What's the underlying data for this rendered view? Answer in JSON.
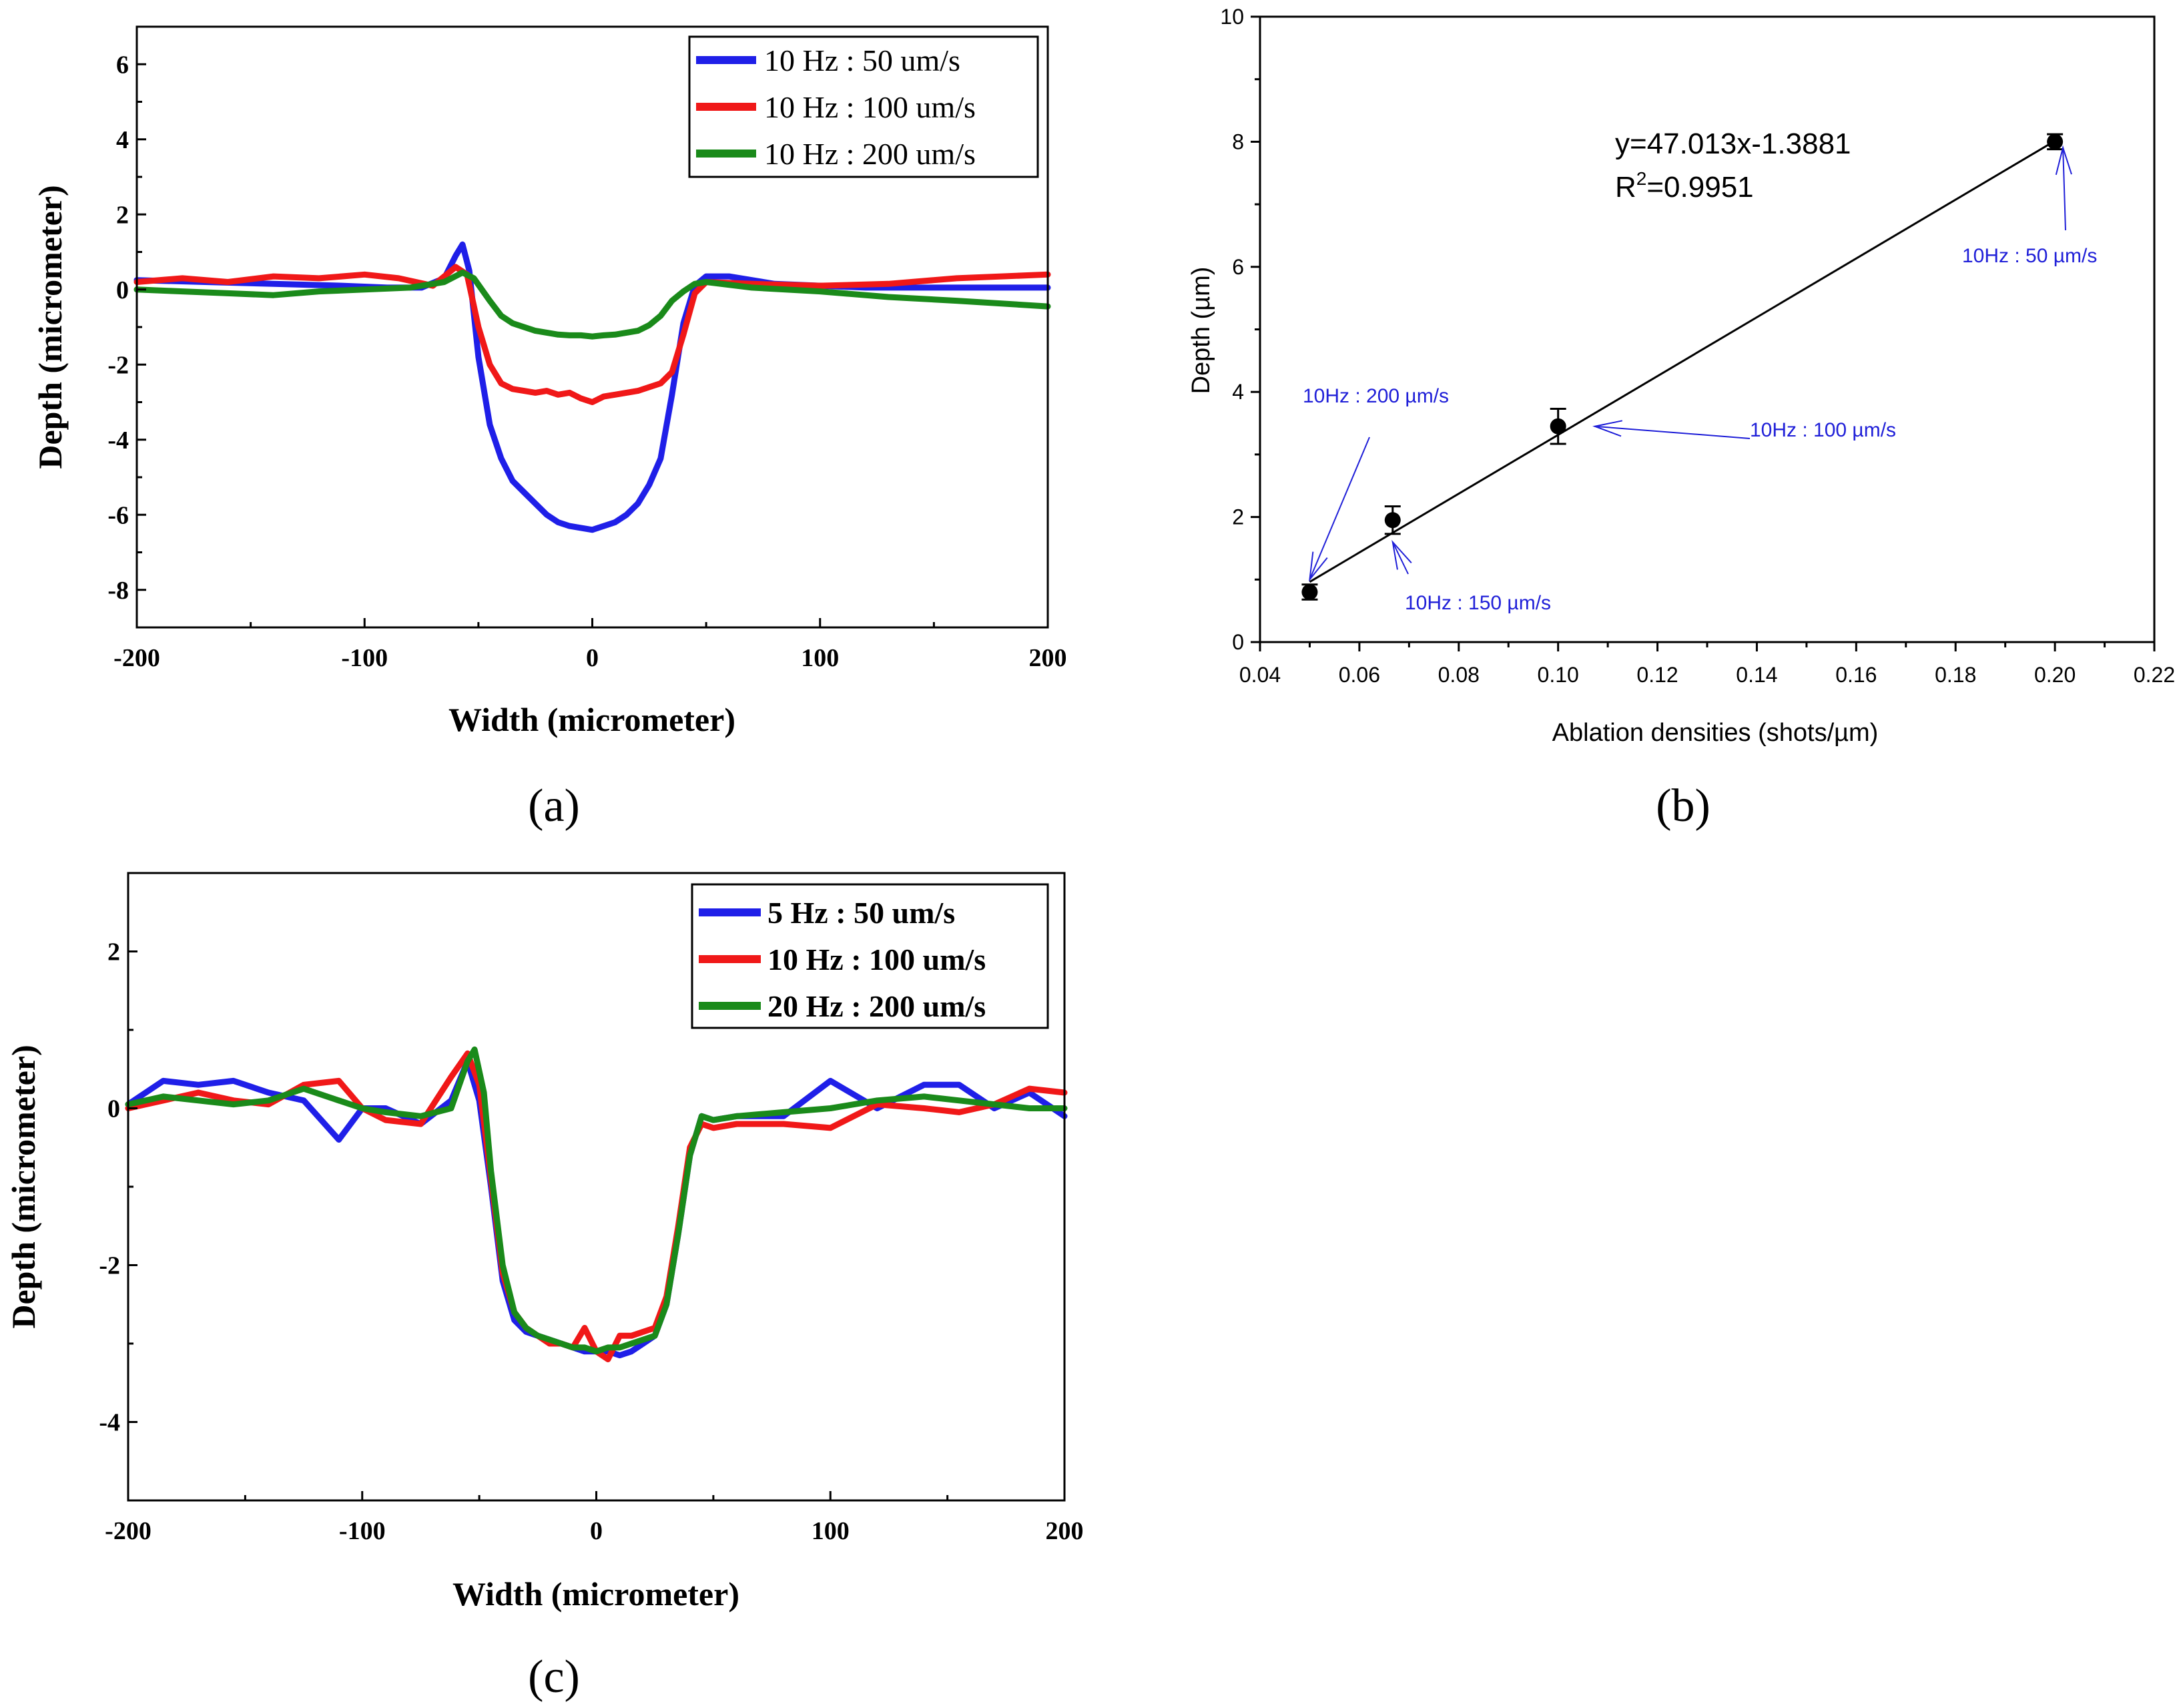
{
  "colors": {
    "blue": "#1f1fe8",
    "red": "#f01818",
    "green": "#1a8a1a",
    "black": "#000000",
    "annotation": "#2020d8"
  },
  "chart_data": [
    {
      "id": "a",
      "panel_label": "(a)",
      "type": "line",
      "xlabel": "Width (micrometer)",
      "ylabel": "Depth (micrometer)",
      "xlim": [
        -200,
        200
      ],
      "ylim": [
        -9,
        7
      ],
      "xticks": [
        -200,
        -100,
        0,
        100,
        200
      ],
      "yticks": [
        -8,
        -6,
        -4,
        -2,
        0,
        2,
        4,
        6
      ],
      "legend_position": "top-right",
      "series": [
        {
          "name": "10 Hz : 50 um/s",
          "color": "blue",
          "x": [
            -200,
            -170,
            -140,
            -110,
            -90,
            -75,
            -65,
            -60,
            -57,
            -54,
            -50,
            -45,
            -40,
            -35,
            -30,
            -25,
            -20,
            -15,
            -10,
            -5,
            0,
            5,
            10,
            15,
            20,
            25,
            30,
            35,
            40,
            45,
            50,
            60,
            80,
            120,
            160,
            200
          ],
          "y": [
            0.25,
            0.2,
            0.15,
            0.1,
            0.05,
            0.05,
            0.3,
            0.9,
            1.2,
            0.5,
            -1.8,
            -3.6,
            -4.5,
            -5.1,
            -5.4,
            -5.7,
            -6.0,
            -6.2,
            -6.3,
            -6.35,
            -6.4,
            -6.3,
            -6.2,
            -6.0,
            -5.7,
            -5.2,
            -4.5,
            -2.8,
            -0.9,
            0.1,
            0.35,
            0.35,
            0.15,
            0.05,
            0.05,
            0.05
          ]
        },
        {
          "name": "10 Hz : 100 um/s",
          "color": "red",
          "x": [
            -200,
            -180,
            -160,
            -140,
            -120,
            -100,
            -85,
            -70,
            -60,
            -55,
            -50,
            -45,
            -40,
            -35,
            -30,
            -25,
            -20,
            -15,
            -10,
            -5,
            0,
            5,
            10,
            15,
            20,
            25,
            30,
            35,
            40,
            45,
            50,
            70,
            100,
            130,
            160,
            200
          ],
          "y": [
            0.2,
            0.3,
            0.2,
            0.35,
            0.3,
            0.4,
            0.3,
            0.1,
            0.6,
            0.4,
            -1.0,
            -2.0,
            -2.5,
            -2.65,
            -2.7,
            -2.75,
            -2.7,
            -2.8,
            -2.75,
            -2.9,
            -3.0,
            -2.85,
            -2.8,
            -2.75,
            -2.7,
            -2.6,
            -2.5,
            -2.2,
            -1.2,
            -0.1,
            0.2,
            0.15,
            0.1,
            0.15,
            0.3,
            0.4
          ]
        },
        {
          "name": "10 Hz : 200 um/s",
          "color": "green",
          "x": [
            -200,
            -180,
            -160,
            -140,
            -120,
            -100,
            -80,
            -65,
            -57,
            -52,
            -45,
            -40,
            -35,
            -30,
            -25,
            -20,
            -15,
            -10,
            -5,
            0,
            5,
            10,
            15,
            20,
            25,
            30,
            35,
            40,
            45,
            50,
            70,
            100,
            130,
            160,
            200
          ],
          "y": [
            0.0,
            -0.05,
            -0.1,
            -0.15,
            -0.05,
            0.0,
            0.05,
            0.2,
            0.45,
            0.3,
            -0.3,
            -0.7,
            -0.9,
            -1.0,
            -1.1,
            -1.15,
            -1.2,
            -1.22,
            -1.22,
            -1.25,
            -1.22,
            -1.2,
            -1.15,
            -1.1,
            -0.95,
            -0.7,
            -0.3,
            -0.05,
            0.15,
            0.2,
            0.05,
            -0.05,
            -0.2,
            -0.3,
            -0.45
          ]
        }
      ]
    },
    {
      "id": "b",
      "panel_label": "(b)",
      "type": "scatter",
      "xlabel": "Ablation densities (shots/µm)",
      "ylabel": "Depth (µm)",
      "xlim": [
        0.04,
        0.22
      ],
      "ylim": [
        0,
        10
      ],
      "xticks": [
        "0.04",
        "0.06",
        "0.08",
        "0.10",
        "0.12",
        "0.14",
        "0.16",
        "0.18",
        "0.20",
        "0.22"
      ],
      "yticks": [
        "0",
        "2",
        "4",
        "6",
        "8",
        "10"
      ],
      "points": [
        {
          "x": 0.05,
          "y": 0.8,
          "err": 0.12
        },
        {
          "x": 0.0667,
          "y": 1.95,
          "err": 0.22
        },
        {
          "x": 0.1,
          "y": 3.45,
          "err": 0.28
        },
        {
          "x": 0.2,
          "y": 8.0,
          "err": 0.12
        }
      ],
      "fit": {
        "slope": 47.013,
        "intercept": -1.3881,
        "x_range": [
          0.05,
          0.2
        ],
        "equation_label": "y=47.013x-1.3881",
        "r2_prefix": "R",
        "r2_exponent": "2",
        "r2_value": "=0.9951"
      },
      "annotations": [
        {
          "text": "10Hz : 200 µm/s",
          "target_x": 0.05,
          "target_y": 1.0
        },
        {
          "text": "10Hz : 150 µm/s",
          "target_x": 0.0667,
          "target_y": 1.6
        },
        {
          "text": "10Hz : 100 µm/s",
          "target_x": 0.1,
          "target_y": 3.45
        },
        {
          "text": "10Hz : 50 µm/s",
          "target_x": 0.2,
          "target_y": 7.8
        }
      ]
    },
    {
      "id": "c",
      "panel_label": "(c)",
      "type": "line",
      "xlabel": "Width (micrometer)",
      "ylabel": "Depth (micrometer)",
      "xlim": [
        -200,
        200
      ],
      "ylim": [
        -5,
        3
      ],
      "xticks": [
        -200,
        -100,
        0,
        100,
        200
      ],
      "yticks": [
        -4,
        -2,
        0,
        2
      ],
      "legend_position": "top-right",
      "series": [
        {
          "name": "5 Hz : 50 um/s",
          "color": "blue",
          "x": [
            -200,
            -185,
            -170,
            -155,
            -140,
            -125,
            -110,
            -100,
            -90,
            -75,
            -62,
            -55,
            -50,
            -45,
            -40,
            -35,
            -30,
            -25,
            -20,
            -15,
            -10,
            -5,
            0,
            5,
            10,
            15,
            20,
            25,
            30,
            35,
            40,
            45,
            50,
            60,
            80,
            100,
            120,
            140,
            155,
            170,
            185,
            200
          ],
          "y": [
            0.05,
            0.35,
            0.3,
            0.35,
            0.2,
            0.1,
            -0.4,
            0.0,
            0.0,
            -0.2,
            0.1,
            0.6,
            0.1,
            -1.0,
            -2.2,
            -2.7,
            -2.85,
            -2.9,
            -2.95,
            -3.0,
            -3.05,
            -3.1,
            -3.1,
            -3.1,
            -3.15,
            -3.1,
            -3.0,
            -2.9,
            -2.5,
            -1.6,
            -0.6,
            -0.1,
            -0.15,
            -0.1,
            -0.1,
            0.35,
            0.0,
            0.3,
            0.3,
            0.0,
            0.2,
            -0.1
          ]
        },
        {
          "name": "10 Hz : 100 um/s",
          "color": "red",
          "x": [
            -200,
            -185,
            -170,
            -155,
            -140,
            -125,
            -110,
            -100,
            -90,
            -75,
            -62,
            -55,
            -50,
            -45,
            -40,
            -35,
            -30,
            -25,
            -20,
            -15,
            -10,
            -5,
            0,
            5,
            10,
            15,
            20,
            25,
            30,
            35,
            40,
            45,
            50,
            60,
            80,
            100,
            120,
            140,
            155,
            170,
            185,
            200
          ],
          "y": [
            0.0,
            0.1,
            0.2,
            0.1,
            0.05,
            0.3,
            0.35,
            0.0,
            -0.15,
            -0.2,
            0.4,
            0.7,
            0.3,
            -0.9,
            -2.1,
            -2.6,
            -2.8,
            -2.9,
            -3.0,
            -3.0,
            -3.05,
            -2.8,
            -3.1,
            -3.2,
            -2.9,
            -2.9,
            -2.85,
            -2.8,
            -2.4,
            -1.5,
            -0.5,
            -0.2,
            -0.25,
            -0.2,
            -0.2,
            -0.25,
            0.05,
            0.0,
            -0.05,
            0.05,
            0.25,
            0.2
          ]
        },
        {
          "name": "20 Hz : 200 um/s",
          "color": "green",
          "x": [
            -200,
            -185,
            -170,
            -155,
            -140,
            -125,
            -110,
            -100,
            -90,
            -75,
            -62,
            -55,
            -52,
            -48,
            -45,
            -40,
            -35,
            -30,
            -25,
            -20,
            -15,
            -10,
            -5,
            0,
            5,
            10,
            15,
            20,
            25,
            30,
            35,
            40,
            45,
            50,
            60,
            80,
            100,
            120,
            140,
            155,
            170,
            185,
            200
          ],
          "y": [
            0.05,
            0.15,
            0.1,
            0.05,
            0.1,
            0.25,
            0.1,
            0.0,
            -0.05,
            -0.1,
            0.0,
            0.6,
            0.75,
            0.2,
            -0.8,
            -2.0,
            -2.6,
            -2.8,
            -2.9,
            -2.95,
            -3.0,
            -3.05,
            -3.05,
            -3.1,
            -3.05,
            -3.05,
            -3.0,
            -2.95,
            -2.9,
            -2.5,
            -1.6,
            -0.6,
            -0.1,
            -0.15,
            -0.1,
            -0.05,
            0.0,
            0.1,
            0.15,
            0.1,
            0.05,
            0.0,
            0.0
          ]
        }
      ]
    }
  ]
}
